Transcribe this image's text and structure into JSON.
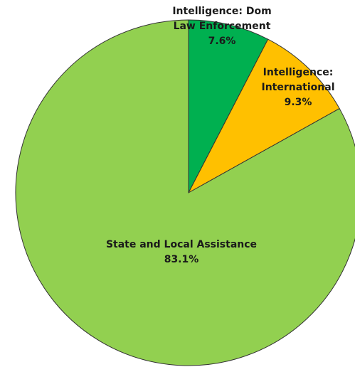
{
  "chart_data": {
    "type": "pie",
    "start_angle_deg": 0,
    "direction": "clockwise",
    "legend": "none",
    "slices": [
      {
        "name": "Intelligence: Dom Law Enforcement",
        "label_lines": [
          "Intelligence: Dom",
          "Law Enforcement"
        ],
        "value": 7.6,
        "value_label": "7.6%",
        "color": "#00B050"
      },
      {
        "name": "Intelligence: International",
        "label_lines": [
          "Intelligence:",
          "International"
        ],
        "value": 9.3,
        "value_label": "9.3%",
        "color": "#FFC000"
      },
      {
        "name": "State and Local Assistance",
        "label_lines": [
          "State and Local Assistance"
        ],
        "value": 83.1,
        "value_label": "83.1%",
        "color": "#92D050"
      }
    ]
  }
}
